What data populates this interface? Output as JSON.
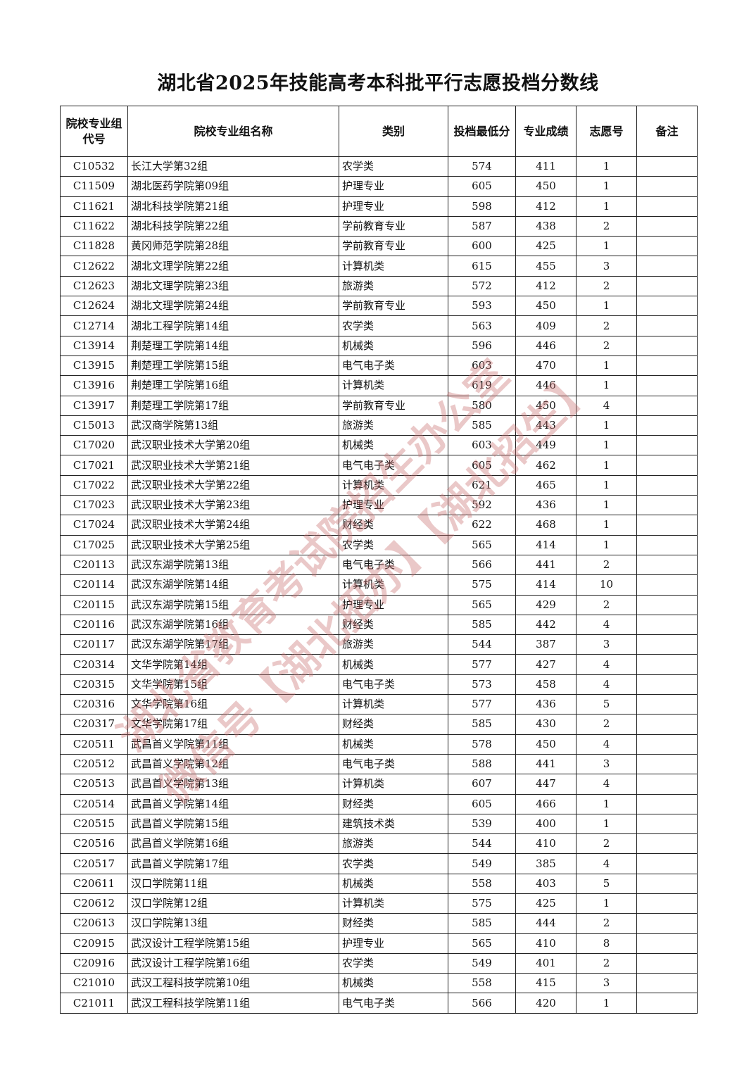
{
  "title": "湖北省2025年技能高考本科批平行志愿投档分数线",
  "columns": [
    "院校专业组\n代号",
    "院校专业组名称",
    "类别",
    "投档最低分",
    "专业成绩",
    "志愿号",
    "备注"
  ],
  "rows": [
    [
      "C10532",
      "长江大学第32组",
      "农学类",
      "574",
      "411",
      "1",
      ""
    ],
    [
      "C11509",
      "湖北医药学院第09组",
      "护理专业",
      "605",
      "450",
      "1",
      ""
    ],
    [
      "C11621",
      "湖北科技学院第21组",
      "护理专业",
      "598",
      "412",
      "1",
      ""
    ],
    [
      "C11622",
      "湖北科技学院第22组",
      "学前教育专业",
      "587",
      "438",
      "2",
      ""
    ],
    [
      "C11828",
      "黄冈师范学院第28组",
      "学前教育专业",
      "600",
      "425",
      "1",
      ""
    ],
    [
      "C12622",
      "湖北文理学院第22组",
      "计算机类",
      "615",
      "455",
      "3",
      ""
    ],
    [
      "C12623",
      "湖北文理学院第23组",
      "旅游类",
      "572",
      "412",
      "2",
      ""
    ],
    [
      "C12624",
      "湖北文理学院第24组",
      "学前教育专业",
      "593",
      "450",
      "1",
      ""
    ],
    [
      "C12714",
      "湖北工程学院第14组",
      "农学类",
      "563",
      "409",
      "2",
      ""
    ],
    [
      "C13914",
      "荆楚理工学院第14组",
      "机械类",
      "596",
      "446",
      "2",
      ""
    ],
    [
      "C13915",
      "荆楚理工学院第15组",
      "电气电子类",
      "603",
      "470",
      "1",
      ""
    ],
    [
      "C13916",
      "荆楚理工学院第16组",
      "计算机类",
      "619",
      "446",
      "1",
      ""
    ],
    [
      "C13917",
      "荆楚理工学院第17组",
      "学前教育专业",
      "580",
      "450",
      "4",
      ""
    ],
    [
      "C15013",
      "武汉商学院第13组",
      "旅游类",
      "585",
      "443",
      "1",
      ""
    ],
    [
      "C17020",
      "武汉职业技术大学第20组",
      "机械类",
      "603",
      "449",
      "1",
      ""
    ],
    [
      "C17021",
      "武汉职业技术大学第21组",
      "电气电子类",
      "605",
      "462",
      "1",
      ""
    ],
    [
      "C17022",
      "武汉职业技术大学第22组",
      "计算机类",
      "621",
      "465",
      "1",
      ""
    ],
    [
      "C17023",
      "武汉职业技术大学第23组",
      "护理专业",
      "592",
      "436",
      "1",
      ""
    ],
    [
      "C17024",
      "武汉职业技术大学第24组",
      "财经类",
      "622",
      "468",
      "1",
      ""
    ],
    [
      "C17025",
      "武汉职业技术大学第25组",
      "农学类",
      "565",
      "414",
      "1",
      ""
    ],
    [
      "C20113",
      "武汉东湖学院第13组",
      "电气电子类",
      "566",
      "441",
      "2",
      ""
    ],
    [
      "C20114",
      "武汉东湖学院第14组",
      "计算机类",
      "575",
      "414",
      "10",
      ""
    ],
    [
      "C20115",
      "武汉东湖学院第15组",
      "护理专业",
      "565",
      "429",
      "2",
      ""
    ],
    [
      "C20116",
      "武汉东湖学院第16组",
      "财经类",
      "585",
      "442",
      "4",
      ""
    ],
    [
      "C20117",
      "武汉东湖学院第17组",
      "旅游类",
      "544",
      "387",
      "3",
      ""
    ],
    [
      "C20314",
      "文华学院第14组",
      "机械类",
      "577",
      "427",
      "4",
      ""
    ],
    [
      "C20315",
      "文华学院第15组",
      "电气电子类",
      "573",
      "458",
      "4",
      ""
    ],
    [
      "C20316",
      "文华学院第16组",
      "计算机类",
      "577",
      "436",
      "5",
      ""
    ],
    [
      "C20317",
      "文华学院第17组",
      "财经类",
      "585",
      "430",
      "2",
      ""
    ],
    [
      "C20511",
      "武昌首义学院第11组",
      "机械类",
      "578",
      "450",
      "4",
      ""
    ],
    [
      "C20512",
      "武昌首义学院第12组",
      "电气电子类",
      "588",
      "441",
      "3",
      ""
    ],
    [
      "C20513",
      "武昌首义学院第13组",
      "计算机类",
      "607",
      "447",
      "4",
      ""
    ],
    [
      "C20514",
      "武昌首义学院第14组",
      "财经类",
      "605",
      "466",
      "1",
      ""
    ],
    [
      "C20515",
      "武昌首义学院第15组",
      "建筑技术类",
      "539",
      "400",
      "1",
      ""
    ],
    [
      "C20516",
      "武昌首义学院第16组",
      "旅游类",
      "544",
      "410",
      "2",
      ""
    ],
    [
      "C20517",
      "武昌首义学院第17组",
      "农学类",
      "549",
      "385",
      "4",
      ""
    ],
    [
      "C20611",
      "汉口学院第11组",
      "机械类",
      "558",
      "403",
      "5",
      ""
    ],
    [
      "C20612",
      "汉口学院第12组",
      "计算机类",
      "575",
      "425",
      "1",
      ""
    ],
    [
      "C20613",
      "汉口学院第13组",
      "财经类",
      "585",
      "444",
      "2",
      ""
    ],
    [
      "C20915",
      "武汉设计工程学院第15组",
      "护理专业",
      "565",
      "410",
      "8",
      ""
    ],
    [
      "C20916",
      "武汉设计工程学院第16组",
      "农学类",
      "549",
      "401",
      "2",
      ""
    ],
    [
      "C21010",
      "武汉工程科技学院第10组",
      "机械类",
      "558",
      "415",
      "3",
      ""
    ],
    [
      "C21011",
      "武汉工程科技学院第11组",
      "电气电子类",
      "566",
      "420",
      "1",
      ""
    ]
  ],
  "watermark": {
    "line1": "湖北省教育考试院招生办公室",
    "line2": "微信号【湖北招办】【湖北招生】",
    "color": "#c86e6e"
  }
}
